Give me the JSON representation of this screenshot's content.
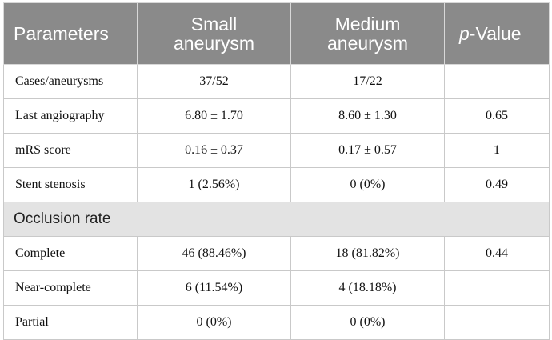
{
  "table": {
    "headers": {
      "parameters": "Parameters",
      "small": [
        "Small",
        "aneurysm"
      ],
      "medium": [
        "Medium",
        "aneurysm"
      ],
      "p_italic": "p",
      "p_rest": "-Value"
    },
    "rows": [
      {
        "label": "Cases/aneurysms",
        "small": "37/52",
        "medium": "17/22",
        "p": ""
      },
      {
        "label": "Last angiography",
        "small": "6.80 ± 1.70",
        "medium": "8.60 ± 1.30",
        "p": "0.65"
      },
      {
        "label": "mRS score",
        "small": "0.16 ± 0.37",
        "medium": "0.17 ± 0.57",
        "p": "1"
      },
      {
        "label": "Stent stenosis",
        "small": "1 (2.56%)",
        "medium": "0 (0%)",
        "p": "0.49"
      }
    ],
    "section_title": "Occlusion rate",
    "section_rows": [
      {
        "label": "Complete",
        "small": "46 (88.46%)",
        "medium": "18 (81.82%)",
        "p": "0.44"
      },
      {
        "label": "Near-complete",
        "small": "6 (11.54%)",
        "medium": "4 (18.18%)",
        "p": ""
      },
      {
        "label": "Partial",
        "small": "0 (0%)",
        "medium": "0 (0%)",
        "p": ""
      }
    ]
  }
}
